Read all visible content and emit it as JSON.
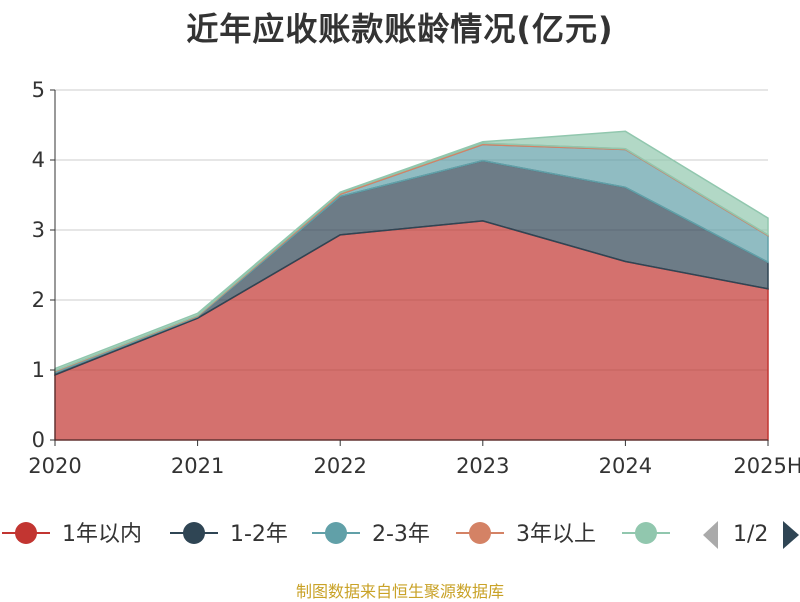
{
  "title": "近年应收账款账龄情况(亿元)",
  "source": "制图数据来自恒生聚源数据库",
  "legend_page": "1/2",
  "chart_data": {
    "type": "area",
    "stacked": true,
    "title": "近年应收账款账龄情况(亿元)",
    "categories": [
      "2020",
      "2021",
      "2022",
      "2023",
      "2024",
      "2025H"
    ],
    "ylim": [
      0,
      5
    ],
    "yticks": [
      0,
      1,
      2,
      3,
      4,
      5
    ],
    "grid": true,
    "legend_position": "bottom",
    "series": [
      {
        "name": "1年以内",
        "color": "#c23531",
        "values": [
          0.93,
          1.74,
          2.93,
          3.13,
          2.55,
          2.16
        ]
      },
      {
        "name": "1-2年",
        "color": "#2f4554",
        "values": [
          0.03,
          0.02,
          0.55,
          0.86,
          1.06,
          0.38
        ]
      },
      {
        "name": "2-3年",
        "color": "#61a0a8",
        "values": [
          0.02,
          0.01,
          0.03,
          0.23,
          0.54,
          0.38
        ]
      },
      {
        "name": "3年以上",
        "color": "#d48265",
        "values": [
          0.01,
          0.01,
          0.02,
          0.02,
          0.01,
          0.01
        ]
      },
      {
        "name": "",
        "color": "#91c7ae",
        "values": [
          0.03,
          0.03,
          0.01,
          0.02,
          0.25,
          0.24
        ]
      }
    ]
  }
}
